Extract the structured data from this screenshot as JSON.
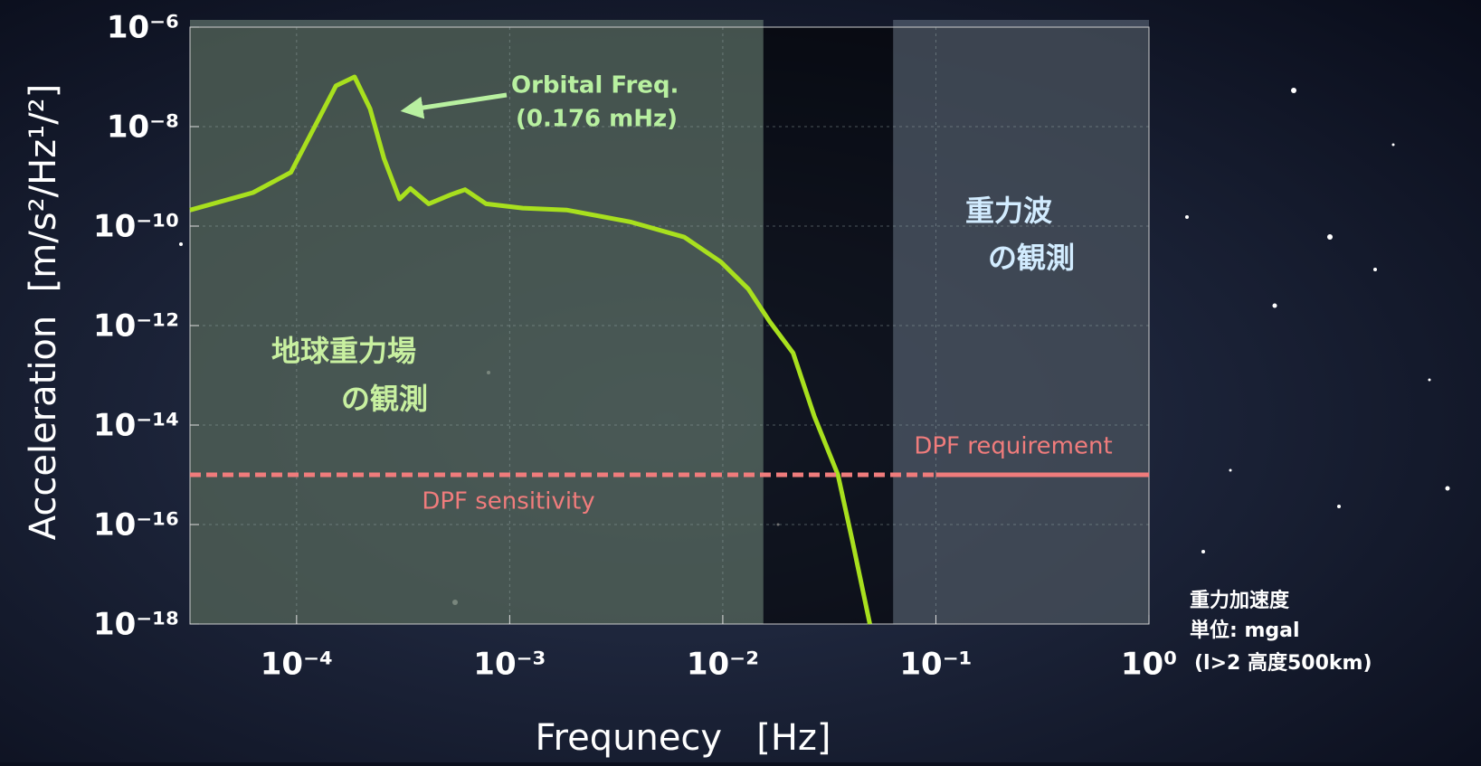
{
  "chart_data": {
    "type": "line",
    "xlabel": "Frequnecy   [Hz]",
    "ylabel": "Acceleration  [m/s²/Hz¹/²]",
    "xlog": true,
    "ylog": true,
    "grid": true,
    "xlim": [
      3.16e-05,
      1
    ],
    "ylim": [
      1e-18,
      1e-06
    ],
    "xticks": [
      {
        "value": 0.0001,
        "label": "10⁻⁴"
      },
      {
        "value": 0.001,
        "label": "10⁻³"
      },
      {
        "value": 0.01,
        "label": "10⁻²"
      },
      {
        "value": 0.1,
        "label": "10⁻¹"
      },
      {
        "value": 1,
        "label": "10⁰"
      }
    ],
    "yticks": [
      {
        "value": 1e-06,
        "label": "10⁻⁶"
      },
      {
        "value": 1e-08,
        "label": "10⁻⁸"
      },
      {
        "value": 1e-10,
        "label": "10⁻¹⁰"
      },
      {
        "value": 1e-12,
        "label": "10⁻¹²"
      },
      {
        "value": 1e-14,
        "label": "10⁻¹⁴"
      },
      {
        "value": 1e-16,
        "label": "10⁻¹⁶"
      },
      {
        "value": 1e-18,
        "label": "10⁻¹⁸"
      }
    ],
    "regions": [
      {
        "xlim": [
          3.16e-05,
          0.0155
        ],
        "label": [
          "地球重力場",
          "の観測"
        ],
        "color": "#7f9a88",
        "label_color": "#c8f0a0"
      },
      {
        "xlim": [
          0.063,
          1
        ],
        "label": [
          "重力波",
          "の観測"
        ],
        "color": "#6f7e8e",
        "label_color": "#d2ecff"
      }
    ],
    "series": [
      {
        "color": "#a8e01e",
        "x": [
          3.16e-05,
          6.24e-05,
          9.4e-05,
          0.000153,
          0.000187,
          0.000221,
          0.000257,
          0.000304,
          0.000342,
          0.000417,
          0.00053,
          0.000617,
          0.000776,
          0.00115,
          0.00186,
          0.00372,
          0.0066,
          0.0098,
          0.0132,
          0.0166,
          0.0214,
          0.0269,
          0.0347,
          0.0407,
          0.049
        ],
        "values": [
          2.1e-10,
          4.7e-10,
          1.2e-09,
          6.6e-08,
          1e-07,
          2.3e-08,
          2.3e-09,
          3.5e-10,
          5.7e-10,
          2.8e-10,
          4.3e-10,
          5.4e-10,
          2.8e-10,
          2.3e-10,
          2.1e-10,
          1.2e-10,
          6e-11,
          1.9e-11,
          5.4e-12,
          1.2e-12,
          2.8e-13,
          1.5e-14,
          1e-15,
          4.4e-17,
          1e-18
        ]
      },
      {
        "name": "DPF sensitivity",
        "color": "#f07c7c",
        "dashed": true,
        "x": [
          3.16e-05,
          0.1
        ],
        "values": [
          1e-15,
          1e-15
        ]
      },
      {
        "name": "DPF requirement",
        "color": "#f07c7c",
        "x": [
          0.1,
          1
        ],
        "values": [
          1e-15,
          1e-15
        ]
      }
    ],
    "annotation": {
      "text": [
        "Orbital Freq.",
        "(0.176 mHz)"
      ],
      "color": "#b8f0a0"
    },
    "note": [
      "重力加速度",
      "単位: mgal",
      "(l>2 高度500km)"
    ]
  }
}
